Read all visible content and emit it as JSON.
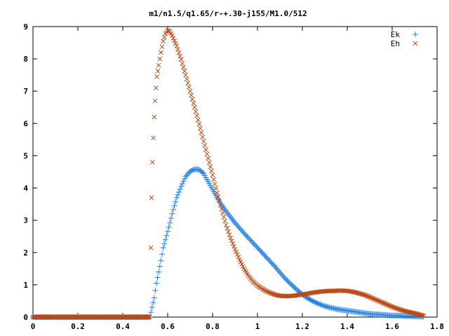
{
  "chart_data": {
    "type": "scatter",
    "title": "m1/n1.5/q1.65/r-+.30-j155/M1.0/512",
    "xlabel": "",
    "ylabel": "",
    "xlim": [
      0,
      1.8
    ],
    "ylim": [
      0,
      9
    ],
    "x_ticks": [
      "0",
      "0.2",
      "0.4",
      "0.6",
      "0.8",
      "1",
      "1.2",
      "1.4",
      "1.6",
      "1.8"
    ],
    "y_ticks": [
      "0",
      "1",
      "2",
      "3",
      "4",
      "5",
      "6",
      "7",
      "8",
      "9"
    ],
    "grid": false,
    "legend_position": "top-right",
    "series": [
      {
        "name": "Ek",
        "marker": "plus",
        "color": "#1f7fe0",
        "points": [
          [
            0.0,
            0.0
          ],
          [
            0.1,
            0.0
          ],
          [
            0.2,
            0.0
          ],
          [
            0.3,
            0.0
          ],
          [
            0.4,
            0.0
          ],
          [
            0.5,
            0.0
          ],
          [
            0.52,
            0.0
          ],
          [
            0.53,
            0.3
          ],
          [
            0.54,
            0.6
          ],
          [
            0.55,
            1.05
          ],
          [
            0.56,
            1.4
          ],
          [
            0.57,
            1.75
          ],
          [
            0.58,
            2.15
          ],
          [
            0.6,
            2.65
          ],
          [
            0.62,
            3.2
          ],
          [
            0.64,
            3.7
          ],
          [
            0.66,
            4.05
          ],
          [
            0.68,
            4.35
          ],
          [
            0.7,
            4.52
          ],
          [
            0.72,
            4.58
          ],
          [
            0.74,
            4.57
          ],
          [
            0.76,
            4.45
          ],
          [
            0.78,
            4.2
          ],
          [
            0.8,
            3.95
          ],
          [
            0.82,
            3.7
          ],
          [
            0.84,
            3.48
          ],
          [
            0.86,
            3.28
          ],
          [
            0.88,
            3.1
          ],
          [
            0.9,
            2.92
          ],
          [
            0.92,
            2.76
          ],
          [
            0.94,
            2.6
          ],
          [
            0.96,
            2.45
          ],
          [
            0.98,
            2.3
          ],
          [
            1.0,
            2.15
          ],
          [
            1.02,
            2.0
          ],
          [
            1.04,
            1.85
          ],
          [
            1.06,
            1.7
          ],
          [
            1.08,
            1.55
          ],
          [
            1.1,
            1.38
          ],
          [
            1.12,
            1.22
          ],
          [
            1.14,
            1.08
          ],
          [
            1.16,
            0.95
          ],
          [
            1.18,
            0.82
          ],
          [
            1.2,
            0.7
          ],
          [
            1.22,
            0.6
          ],
          [
            1.24,
            0.52
          ],
          [
            1.26,
            0.45
          ],
          [
            1.28,
            0.39
          ],
          [
            1.3,
            0.34
          ],
          [
            1.32,
            0.3
          ],
          [
            1.34,
            0.27
          ],
          [
            1.36,
            0.24
          ],
          [
            1.38,
            0.22
          ],
          [
            1.4,
            0.2
          ],
          [
            1.42,
            0.18
          ],
          [
            1.44,
            0.16
          ],
          [
            1.46,
            0.14
          ],
          [
            1.48,
            0.12
          ],
          [
            1.5,
            0.1
          ],
          [
            1.52,
            0.09
          ],
          [
            1.54,
            0.08
          ],
          [
            1.56,
            0.07
          ],
          [
            1.58,
            0.06
          ],
          [
            1.6,
            0.05
          ],
          [
            1.62,
            0.05
          ],
          [
            1.64,
            0.04
          ],
          [
            1.66,
            0.03
          ],
          [
            1.68,
            0.03
          ],
          [
            1.7,
            0.02
          ],
          [
            1.72,
            0.02
          ],
          [
            1.74,
            0.01
          ]
        ]
      },
      {
        "name": "Eh",
        "marker": "cross",
        "color": "#b94a16",
        "points": [
          [
            0.0,
            0.0
          ],
          [
            0.1,
            0.0
          ],
          [
            0.2,
            0.0
          ],
          [
            0.3,
            0.0
          ],
          [
            0.4,
            0.0
          ],
          [
            0.5,
            0.0
          ],
          [
            0.52,
            0.0
          ],
          [
            0.525,
            2.15
          ],
          [
            0.528,
            3.7
          ],
          [
            0.532,
            4.8
          ],
          [
            0.536,
            5.55
          ],
          [
            0.54,
            6.2
          ],
          [
            0.544,
            6.7
          ],
          [
            0.548,
            7.1
          ],
          [
            0.552,
            7.45
          ],
          [
            0.56,
            7.8
          ],
          [
            0.57,
            8.2
          ],
          [
            0.58,
            8.55
          ],
          [
            0.59,
            8.78
          ],
          [
            0.6,
            8.88
          ],
          [
            0.61,
            8.85
          ],
          [
            0.62,
            8.72
          ],
          [
            0.64,
            8.4
          ],
          [
            0.66,
            7.98
          ],
          [
            0.68,
            7.5
          ],
          [
            0.7,
            7.0
          ],
          [
            0.72,
            6.5
          ],
          [
            0.74,
            5.98
          ],
          [
            0.76,
            5.45
          ],
          [
            0.78,
            4.92
          ],
          [
            0.8,
            4.4
          ],
          [
            0.82,
            3.85
          ],
          [
            0.84,
            3.35
          ],
          [
            0.86,
            2.85
          ],
          [
            0.88,
            2.45
          ],
          [
            0.9,
            2.1
          ],
          [
            0.92,
            1.78
          ],
          [
            0.94,
            1.5
          ],
          [
            0.96,
            1.28
          ],
          [
            0.98,
            1.1
          ],
          [
            1.0,
            0.98
          ],
          [
            1.02,
            0.88
          ],
          [
            1.04,
            0.8
          ],
          [
            1.06,
            0.74
          ],
          [
            1.08,
            0.69
          ],
          [
            1.1,
            0.66
          ],
          [
            1.12,
            0.65
          ],
          [
            1.14,
            0.65
          ],
          [
            1.16,
            0.66
          ],
          [
            1.18,
            0.68
          ],
          [
            1.2,
            0.7
          ],
          [
            1.22,
            0.72
          ],
          [
            1.24,
            0.75
          ],
          [
            1.26,
            0.77
          ],
          [
            1.28,
            0.79
          ],
          [
            1.3,
            0.8
          ],
          [
            1.32,
            0.81
          ],
          [
            1.34,
            0.81
          ],
          [
            1.36,
            0.82
          ],
          [
            1.38,
            0.82
          ],
          [
            1.4,
            0.81
          ],
          [
            1.42,
            0.79
          ],
          [
            1.44,
            0.76
          ],
          [
            1.46,
            0.72
          ],
          [
            1.48,
            0.68
          ],
          [
            1.5,
            0.62
          ],
          [
            1.52,
            0.56
          ],
          [
            1.54,
            0.5
          ],
          [
            1.56,
            0.44
          ],
          [
            1.58,
            0.38
          ],
          [
            1.6,
            0.32
          ],
          [
            1.62,
            0.27
          ],
          [
            1.64,
            0.22
          ],
          [
            1.66,
            0.18
          ],
          [
            1.68,
            0.15
          ],
          [
            1.7,
            0.12
          ],
          [
            1.72,
            0.08
          ],
          [
            1.74,
            0.04
          ]
        ]
      }
    ]
  }
}
